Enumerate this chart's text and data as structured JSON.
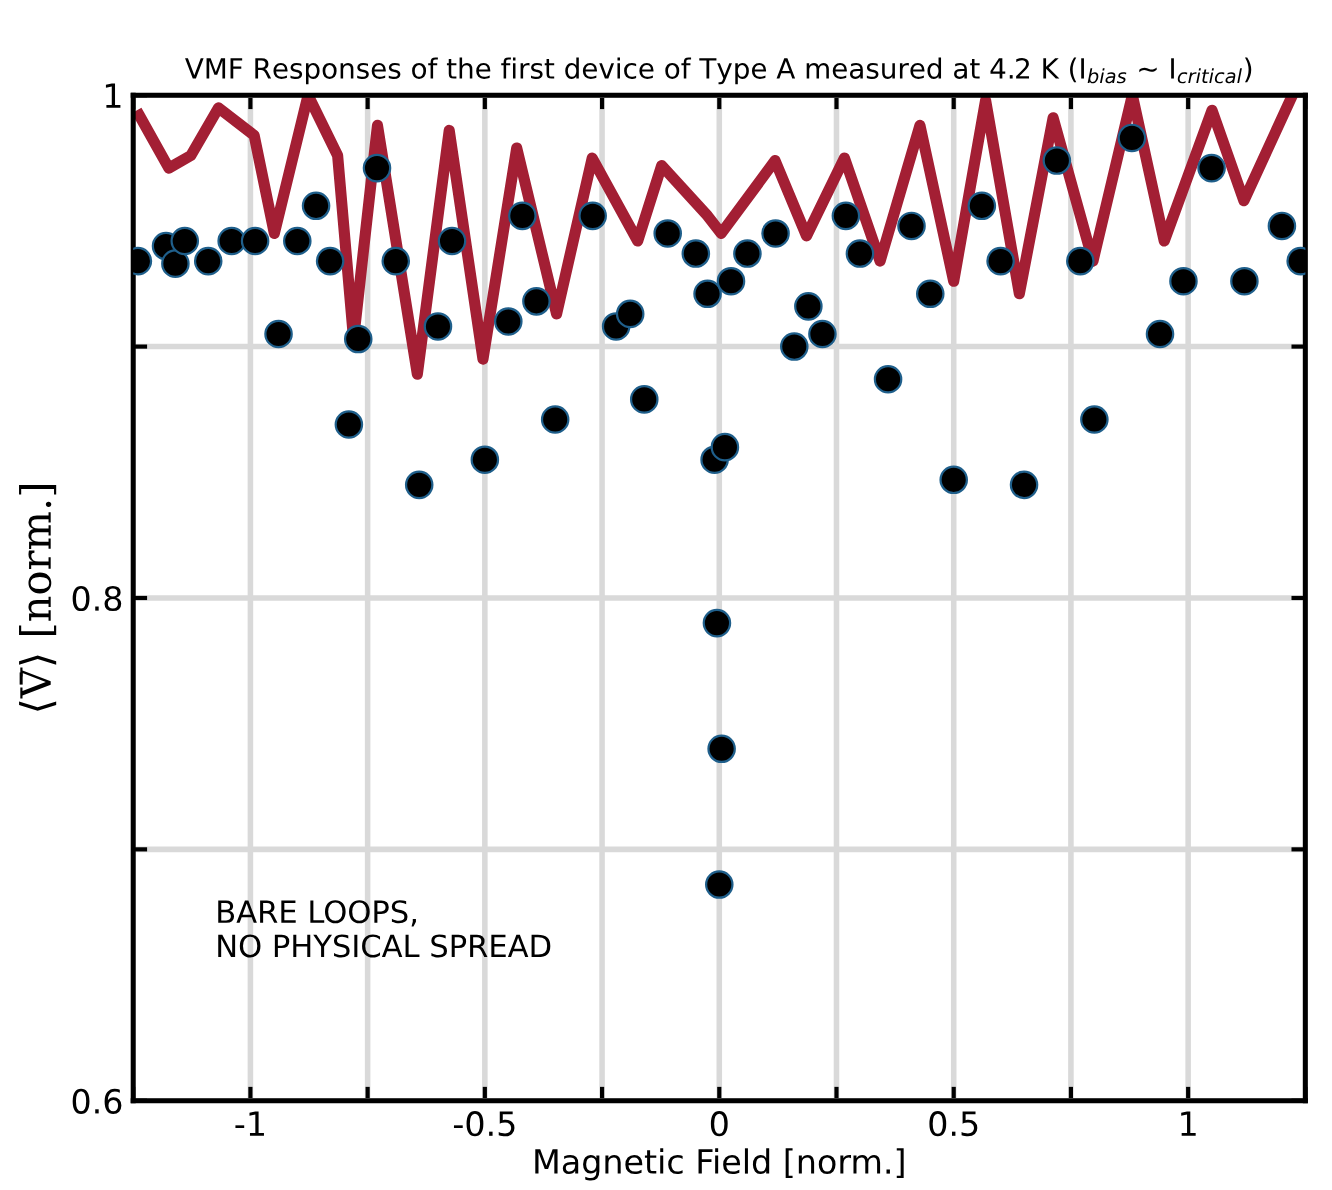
{
  "chart_data": {
    "type": "line",
    "title": "VMF Responses of the first device of Type A measured at 4.2 K (I$_{bias}$ ~ I$_{critical}$)",
    "xlabel": "Magnetic Field [norm.]",
    "ylabel": "⟨V̄⟩ [norm.]",
    "annotations": [
      "BARE LOOPS,\nNO PHYSICAL SPREAD"
    ],
    "xlim": [
      -1.25,
      1.25
    ],
    "ylim": [
      0.6,
      1
    ],
    "xticks": [
      {
        "value": -1.25,
        "label": null
      },
      -1,
      {
        "value": -0.75,
        "label": null
      },
      -0.5,
      {
        "value": -0.25,
        "label": null
      },
      0,
      {
        "value": 0.25,
        "label": null
      },
      0.5,
      {
        "value": 0.75,
        "label": null
      },
      1,
      {
        "value": 1.25,
        "label": null
      }
    ],
    "yticks": [
      0.6,
      {
        "value": 0.7,
        "label": null
      },
      0.8,
      {
        "value": 0.9,
        "label": null
      },
      1
    ],
    "grid": true,
    "series": [
      {
        "color": "#a31f34",
        "x": [
          -1.237,
          -1.174,
          -1.127,
          -1.068,
          -0.992,
          -0.949,
          -0.877,
          -0.814,
          -0.78,
          -0.729,
          -0.644,
          -0.576,
          -0.504,
          -0.432,
          -0.347,
          -0.271,
          -0.174,
          -0.123,
          -0.025,
          0.004,
          0.119,
          0.186,
          0.267,
          0.343,
          0.428,
          0.5,
          0.568,
          0.64,
          0.712,
          0.797,
          0.881,
          0.949,
          1.051,
          1.119,
          1.22
        ],
        "values": [
          0.992,
          0.971,
          0.976,
          0.995,
          0.984,
          0.945,
          1.0,
          0.976,
          0.903,
          0.988,
          0.889,
          0.986,
          0.895,
          0.979,
          0.913,
          0.975,
          0.942,
          0.972,
          0.952,
          0.945,
          0.974,
          0.944,
          0.975,
          0.934,
          0.988,
          0.926,
          0.998,
          0.921,
          0.991,
          0.934,
          1.0,
          0.942,
          0.994,
          0.958,
          0.999
        ]
      },
      {
        "type": "scatter",
        "marker": "circle",
        "color": "#000000",
        "x": [
          -1.24,
          -1.18,
          -1.16,
          -1.14,
          -1.09,
          -1.04,
          -0.99,
          -0.94,
          -0.9,
          -0.86,
          -0.83,
          -0.79,
          -0.77,
          -0.73,
          -0.69,
          -0.64,
          -0.6,
          -0.57,
          -0.5,
          -0.45,
          -0.42,
          -0.39,
          -0.35,
          -0.27,
          -0.22,
          -0.19,
          -0.16,
          -0.11,
          -0.05,
          -0.025,
          -0.01,
          -0.005,
          0.0,
          0.005,
          0.012,
          0.025,
          0.06,
          0.12,
          0.16,
          0.19,
          0.22,
          0.27,
          0.3,
          0.36,
          0.41,
          0.45,
          0.5,
          0.56,
          0.6,
          0.65,
          0.72,
          0.77,
          0.8,
          0.88,
          0.94,
          0.99,
          1.05,
          1.12,
          1.2,
          1.24
        ],
        "values": [
          0.934,
          0.94,
          0.933,
          0.942,
          0.934,
          0.942,
          0.942,
          0.905,
          0.942,
          0.956,
          0.934,
          0.869,
          0.903,
          0.971,
          0.934,
          0.845,
          0.908,
          0.942,
          0.855,
          0.91,
          0.952,
          0.918,
          0.871,
          0.952,
          0.908,
          0.913,
          0.879,
          0.945,
          0.937,
          0.921,
          0.855,
          0.79,
          0.686,
          0.74,
          0.86,
          0.926,
          0.937,
          0.945,
          0.9,
          0.916,
          0.905,
          0.952,
          0.937,
          0.887,
          0.948,
          0.921,
          0.847,
          0.956,
          0.934,
          0.845,
          0.974,
          0.934,
          0.871,
          0.983,
          0.905,
          0.926,
          0.971,
          0.926,
          0.948,
          0.934
        ]
      }
    ]
  }
}
